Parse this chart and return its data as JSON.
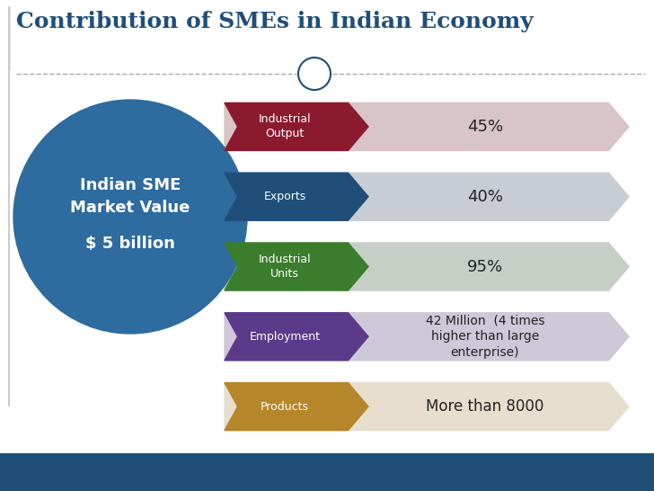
{
  "title": "Contribution of SMEs in Indian Economy",
  "title_fontsize": 18,
  "title_color": "#1f4e79",
  "background_color": "#ffffff",
  "circle_color": "#2e6b9e",
  "bottom_bar_color": "#1f4e79",
  "separator_circle_color": "#1f4e79",
  "rows": [
    {
      "label": "Industrial\nOutput",
      "value": "45%",
      "arrow_color": "#8b1a2f",
      "band_color": "#d9c4c8",
      "value_fontsize": 13
    },
    {
      "label": "Exports",
      "value": "40%",
      "arrow_color": "#1f4e79",
      "band_color": "#c8cdd4",
      "value_fontsize": 13
    },
    {
      "label": "Industrial\nUnits",
      "value": "95%",
      "arrow_color": "#3a7d2c",
      "band_color": "#c5cfc5",
      "value_fontsize": 13
    },
    {
      "label": "Employment",
      "value": "42 Million  (4 times\nhigher than large\nenterprise)",
      "arrow_color": "#5c3a8a",
      "band_color": "#cec8d8",
      "value_fontsize": 10
    },
    {
      "label": "Products",
      "value": "More than 8000",
      "arrow_color": "#b5862a",
      "band_color": "#e8dece",
      "value_fontsize": 12
    }
  ]
}
